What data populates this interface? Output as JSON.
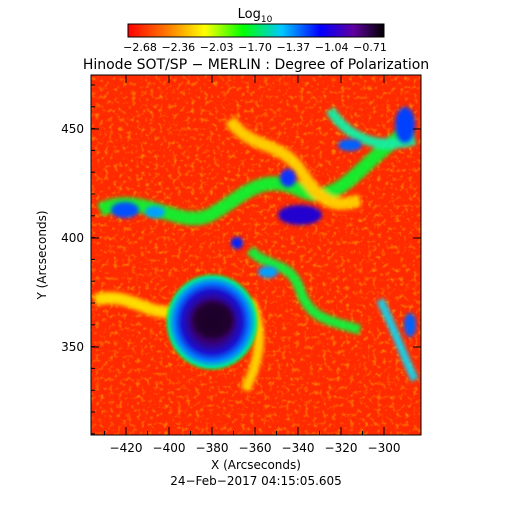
{
  "colorbar": {
    "label_base": "Log",
    "label_sub": "10",
    "ticks": [
      "−2.68",
      "−2.36",
      "−2.03",
      "−1.70",
      "−1.37",
      "−1.04",
      "−0.71"
    ],
    "colors": [
      "#ff0000",
      "#ff7f00",
      "#ffff00",
      "#00ff00",
      "#00c8ff",
      "#0000ff",
      "#6000a0",
      "#000000"
    ]
  },
  "title": "Hinode SOT/SP − MERLIN : Degree of Polarization",
  "plot": {
    "xlabel": "X (Arcseconds)",
    "ylabel": "Y (Arcseconds)",
    "xticks": [
      "−420",
      "−400",
      "−380",
      "−360",
      "−340",
      "−320",
      "−300"
    ],
    "yticks": [
      "450",
      "400",
      "350"
    ],
    "background_color": "#ff2a00"
  },
  "timestamp": "24−Feb−2017 04:15:05.605"
}
